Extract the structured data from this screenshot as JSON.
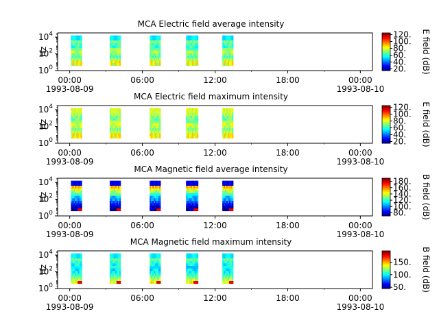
{
  "chart_data": [
    {
      "type": "heatmap",
      "title": "MCA  Electric field average intensity",
      "ylabel": "Hz",
      "x_ticks": [
        "00:00",
        "06:00",
        "12:00",
        "18:00",
        "00:00"
      ],
      "x_ticks_hours": [
        0,
        6,
        12,
        18,
        24
      ],
      "x_start_date": "1993-08-09",
      "x_end_date": "1993-08-10",
      "xlim_hours": [
        -1,
        25
      ],
      "y_scale": "log",
      "ylim_exp": [
        0,
        4.5
      ],
      "y_ticks": [
        {
          "base": "10",
          "exp": "0"
        },
        {
          "base": "10",
          "exp": "2"
        },
        {
          "base": "10",
          "exp": "4"
        }
      ],
      "y_tick_exps": [
        0,
        2,
        4
      ],
      "colorbar": {
        "label": "E field (dB)",
        "range": [
          15,
          125
        ],
        "ticks": [
          "20.",
          "40.",
          "60.",
          "80.",
          "100.",
          "120."
        ],
        "tick_values": [
          20,
          40,
          60,
          80,
          100,
          120
        ]
      },
      "passes_hours": [
        [
          0.1,
          1.0
        ],
        [
          3.3,
          4.2
        ],
        [
          6.6,
          7.5
        ],
        [
          9.6,
          10.6
        ],
        [
          12.6,
          13.5
        ]
      ],
      "band_levels": [
        0.62,
        0.55,
        0.5,
        0.45,
        0.42,
        0.48,
        0.55,
        0.5,
        0.45,
        0.52,
        0.6,
        0.55
      ],
      "top_mode": "cyan",
      "low_mode": "yellow"
    },
    {
      "type": "heatmap",
      "title": "MCA  Electric field maximum intensity",
      "ylabel": "Hz",
      "x_ticks": [
        "00:00",
        "06:00",
        "12:00",
        "18:00",
        "00:00"
      ],
      "x_ticks_hours": [
        0,
        6,
        12,
        18,
        24
      ],
      "x_start_date": "1993-08-09",
      "x_end_date": "1993-08-10",
      "xlim_hours": [
        -1,
        25
      ],
      "y_scale": "log",
      "ylim_exp": [
        0,
        4.5
      ],
      "y_ticks": [
        {
          "base": "10",
          "exp": "0"
        },
        {
          "base": "10",
          "exp": "2"
        },
        {
          "base": "10",
          "exp": "4"
        }
      ],
      "y_tick_exps": [
        0,
        2,
        4
      ],
      "colorbar": {
        "label": "E field (dB)",
        "range": [
          15,
          125
        ],
        "ticks": [
          "20.",
          "40.",
          "60.",
          "80.",
          "100.",
          "120."
        ],
        "tick_values": [
          20,
          40,
          60,
          80,
          100,
          120
        ]
      },
      "passes_hours": [
        [
          0.1,
          1.0
        ],
        [
          3.3,
          4.2
        ],
        [
          6.6,
          7.5
        ],
        [
          9.6,
          10.6
        ],
        [
          12.6,
          13.5
        ]
      ],
      "band_levels": [
        0.6,
        0.58,
        0.55,
        0.5,
        0.48,
        0.52,
        0.58,
        0.55,
        0.5,
        0.55,
        0.62,
        0.6
      ],
      "top_mode": "green",
      "low_mode": "yellow"
    },
    {
      "type": "heatmap",
      "title": "MCA  Magnetic field average intensity",
      "ylabel": "Hz",
      "x_ticks": [
        "00:00",
        "06:00",
        "12:00",
        "18:00",
        "00:00"
      ],
      "x_ticks_hours": [
        0,
        6,
        12,
        18,
        24
      ],
      "x_start_date": "1993-08-09",
      "x_end_date": "1993-08-10",
      "xlim_hours": [
        -1,
        25
      ],
      "y_scale": "log",
      "ylim_exp": [
        0,
        4.5
      ],
      "y_ticks": [
        {
          "base": "10",
          "exp": "0"
        },
        {
          "base": "10",
          "exp": "2"
        },
        {
          "base": "10",
          "exp": "4"
        }
      ],
      "y_tick_exps": [
        0,
        2,
        4
      ],
      "colorbar": {
        "label": "B field (dB)",
        "range": [
          70,
          190
        ],
        "ticks": [
          "80.",
          "100.",
          "120.",
          "140.",
          "160.",
          "180."
        ],
        "tick_values": [
          80,
          100,
          120,
          140,
          160,
          180
        ]
      },
      "passes_hours": [
        [
          0.1,
          1.0
        ],
        [
          3.3,
          4.2
        ],
        [
          6.6,
          7.5
        ],
        [
          9.6,
          10.6
        ],
        [
          12.6,
          13.5
        ]
      ],
      "band_levels": [
        0.85,
        0.8,
        0.7,
        0.62,
        0.52,
        0.42,
        0.32,
        0.28,
        0.2,
        0.12,
        0.06,
        0.04
      ],
      "top_mode": "blue",
      "low_mode": "red"
    },
    {
      "type": "heatmap",
      "title": "MCA  Magnetic field maximum intensity",
      "ylabel": "Hz",
      "x_ticks": [
        "00:00",
        "06:00",
        "12:00",
        "18:00",
        "00:00"
      ],
      "x_ticks_hours": [
        0,
        6,
        12,
        18,
        24
      ],
      "x_start_date": "1993-08-09",
      "x_end_date": "1993-08-10",
      "xlim_hours": [
        -1,
        25
      ],
      "y_scale": "log",
      "ylim_exp": [
        0,
        4.5
      ],
      "y_ticks": [
        {
          "base": "10",
          "exp": "0"
        },
        {
          "base": "10",
          "exp": "2"
        },
        {
          "base": "10",
          "exp": "4"
        }
      ],
      "y_tick_exps": [
        0,
        2,
        4
      ],
      "colorbar": {
        "label": "B field (dB)",
        "range": [
          45,
          195
        ],
        "ticks": [
          "50.",
          "100.",
          "150."
        ],
        "tick_values": [
          50,
          100,
          150
        ]
      },
      "passes_hours": [
        [
          0.1,
          1.0
        ],
        [
          3.3,
          4.2
        ],
        [
          6.6,
          7.5
        ],
        [
          9.6,
          10.6
        ],
        [
          12.6,
          13.5
        ]
      ],
      "band_levels": [
        0.62,
        0.55,
        0.48,
        0.42,
        0.38,
        0.36,
        0.36,
        0.38,
        0.42,
        0.48,
        0.55,
        0.62
      ],
      "top_mode": "cyan",
      "low_mode": "red"
    }
  ]
}
